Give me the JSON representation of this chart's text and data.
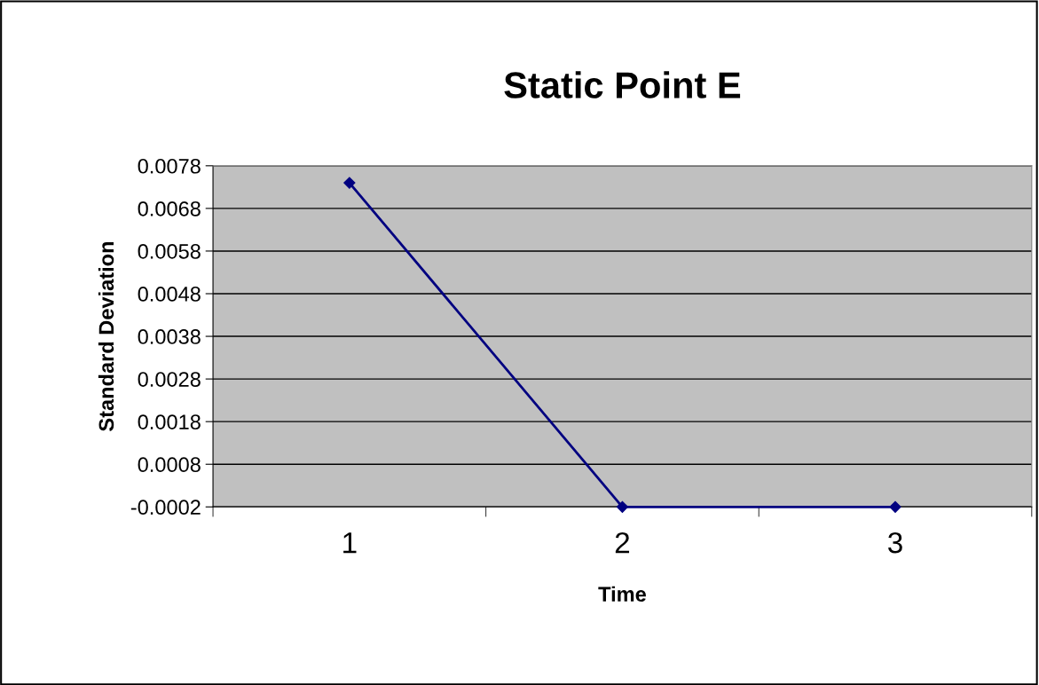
{
  "chart_data": {
    "type": "line",
    "title": "Static Point E",
    "xlabel": "Time",
    "ylabel": "Standard Deviation",
    "categories": [
      "1",
      "2",
      "3"
    ],
    "series": [
      {
        "color": "#000080",
        "values": [
          0.0074,
          -0.0002,
          -0.0002
        ]
      }
    ],
    "ylim": [
      -0.0002,
      0.0078
    ],
    "yticks": [
      -0.0002,
      0.0008,
      0.0018,
      0.0028,
      0.0038,
      0.0048,
      0.0058,
      0.0068,
      0.0078
    ],
    "grid": "y",
    "marker": "diamond",
    "line_style": "solid"
  }
}
